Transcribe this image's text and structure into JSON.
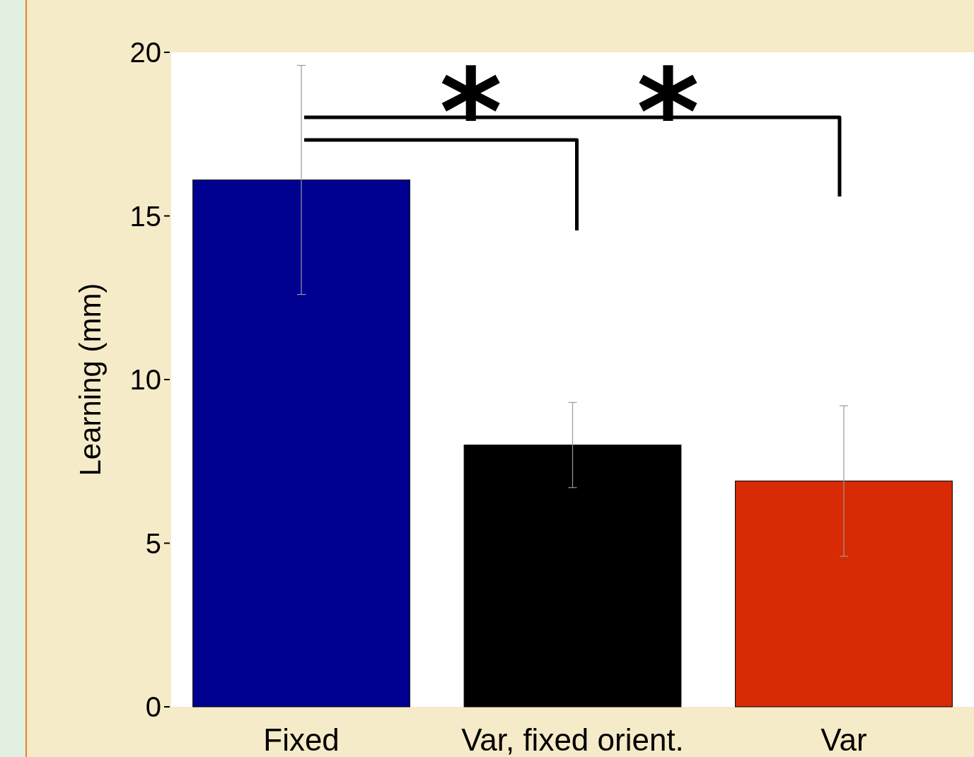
{
  "chart_data": {
    "type": "bar",
    "ylabel": "Learning (mm)",
    "categories": [
      "Fixed",
      "Var, fixed orient.",
      "Var"
    ],
    "values": [
      16.1,
      8.0,
      6.9
    ],
    "colors": [
      "#000090",
      "#000000",
      "#d82a04"
    ],
    "errors": [
      3.5,
      1.3,
      2.3
    ],
    "ylim": [
      0,
      20
    ],
    "yticks": [
      0,
      5,
      10,
      15,
      20
    ],
    "grid": false,
    "annotations": [
      "*",
      "*"
    ]
  }
}
